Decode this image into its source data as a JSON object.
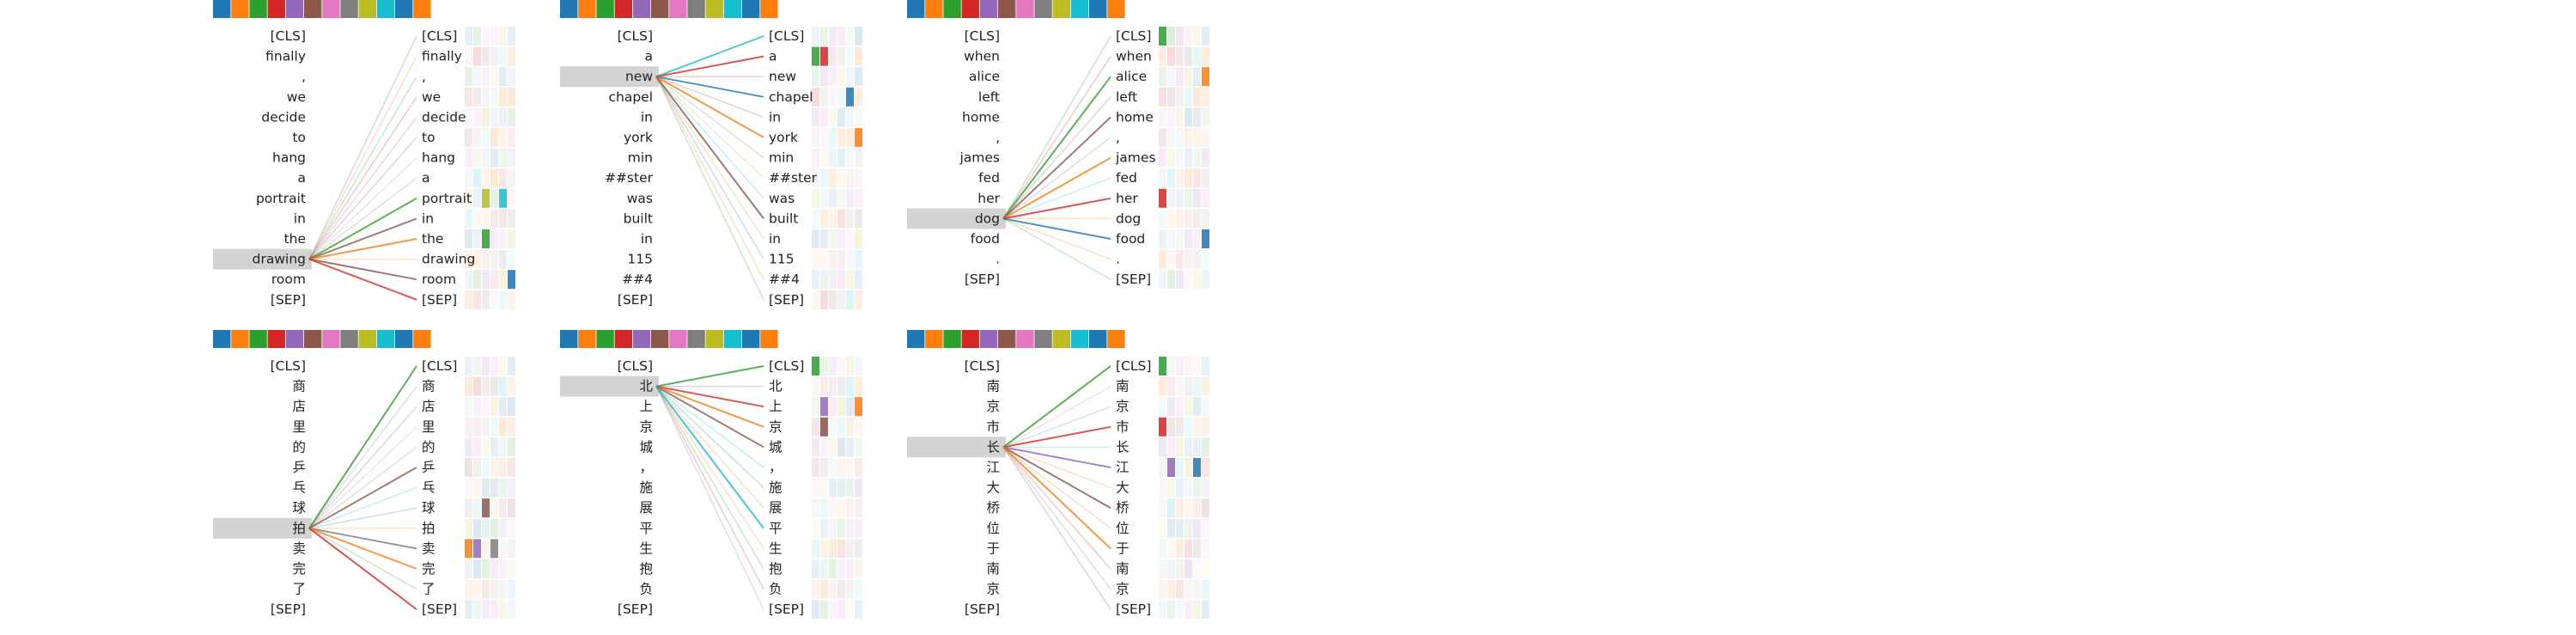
{
  "palette": [
    "#1f77b4",
    "#ff7f0e",
    "#2ca02c",
    "#d62728",
    "#9467bd",
    "#8c564b",
    "#e377c2",
    "#7f7f7f",
    "#bcbd22",
    "#17becf",
    "#1f77b4",
    "#ff7f0e"
  ],
  "highlight_color": "#d3d3d3",
  "panels": [
    {
      "left_tokens": [
        "[CLS]",
        "finally",
        ",",
        "we",
        "decide",
        "to",
        "hang",
        "a",
        "portrait",
        "in",
        "the",
        "drawing",
        "room",
        "[SEP]"
      ],
      "right_tokens": [
        "[CLS]",
        "finally",
        ",",
        "we",
        "decide",
        "to",
        "hang",
        "a",
        "portrait",
        "in",
        "the",
        "drawing",
        "room",
        "[SEP]"
      ],
      "selected_index": 11,
      "strong_links": [
        {
          "to": 8,
          "color": "#2ca02c"
        },
        {
          "to": 9,
          "color": "#8c564b"
        },
        {
          "to": 10,
          "color": "#ff7f0e"
        },
        {
          "to": 12,
          "color": "#8c564b"
        },
        {
          "to": 13,
          "color": "#d62728"
        }
      ],
      "token_marks": [
        {
          "row": 8,
          "head": 2,
          "color": "#bcbd22"
        },
        {
          "row": 10,
          "head": 2,
          "color": "#2ca02c"
        },
        {
          "row": 8,
          "head": 4,
          "color": "#17becf"
        },
        {
          "row": 12,
          "head": 5,
          "color": "#1f77b4"
        }
      ]
    },
    {
      "left_tokens": [
        "[CLS]",
        "a",
        "new",
        "chapel",
        "in",
        "york",
        "min",
        "##ster",
        "was",
        "built",
        "in",
        "115",
        "##4",
        "[SEP]"
      ],
      "right_tokens": [
        "[CLS]",
        "a",
        "new",
        "chapel",
        "in",
        "york",
        "min",
        "##ster",
        "was",
        "built",
        "in",
        "115",
        "##4",
        "[SEP]"
      ],
      "selected_index": 2,
      "strong_links": [
        {
          "to": 0,
          "color": "#17becf"
        },
        {
          "to": 1,
          "color": "#d62728"
        },
        {
          "to": 3,
          "color": "#1f77b4"
        },
        {
          "to": 5,
          "color": "#ff7f0e"
        },
        {
          "to": 9,
          "color": "#8c564b"
        }
      ],
      "token_marks": [
        {
          "row": 1,
          "head": 0,
          "color": "#2ca02c"
        },
        {
          "row": 1,
          "head": 1,
          "color": "#d62728"
        },
        {
          "row": 3,
          "head": 4,
          "color": "#1f77b4"
        },
        {
          "row": 5,
          "head": 5,
          "color": "#ff7f0e"
        }
      ]
    },
    {
      "left_tokens": [
        "[CLS]",
        "when",
        "alice",
        "left",
        "home",
        ",",
        "james",
        "fed",
        "her",
        "dog",
        "food",
        ".",
        "[SEP]"
      ],
      "right_tokens": [
        "[CLS]",
        "when",
        "alice",
        "left",
        "home",
        ",",
        "james",
        "fed",
        "her",
        "dog",
        "food",
        ".",
        "[SEP]"
      ],
      "selected_index": 9,
      "strong_links": [
        {
          "to": 2,
          "color": "#2ca02c"
        },
        {
          "to": 4,
          "color": "#8c564b"
        },
        {
          "to": 6,
          "color": "#ff7f0e"
        },
        {
          "to": 8,
          "color": "#d62728"
        },
        {
          "to": 10,
          "color": "#1f77b4"
        }
      ],
      "token_marks": [
        {
          "row": 0,
          "head": 0,
          "color": "#2ca02c"
        },
        {
          "row": 8,
          "head": 0,
          "color": "#d62728"
        },
        {
          "row": 10,
          "head": 5,
          "color": "#1f77b4"
        },
        {
          "row": 2,
          "head": 5,
          "color": "#ff7f0e"
        }
      ]
    },
    {
      "left_tokens": [
        "[CLS]",
        "商",
        "店",
        "里",
        "的",
        "乒",
        "乓",
        "球",
        "拍",
        "卖",
        "完",
        "了",
        "[SEP]"
      ],
      "right_tokens": [
        "[CLS]",
        "商",
        "店",
        "里",
        "的",
        "乒",
        "乓",
        "球",
        "拍",
        "卖",
        "完",
        "了",
        "[SEP]"
      ],
      "selected_index": 8,
      "strong_links": [
        {
          "to": 0,
          "color": "#2ca02c"
        },
        {
          "to": 5,
          "color": "#8c564b"
        },
        {
          "to": 9,
          "color": "#7f7f7f"
        },
        {
          "to": 10,
          "color": "#ff7f0e"
        },
        {
          "to": 12,
          "color": "#d62728"
        }
      ],
      "token_marks": [
        {
          "row": 9,
          "head": 1,
          "color": "#9467bd"
        },
        {
          "row": 9,
          "head": 3,
          "color": "#7f7f7f"
        },
        {
          "row": 9,
          "head": 0,
          "color": "#ff7f0e"
        },
        {
          "row": 7,
          "head": 2,
          "color": "#8c564b"
        }
      ]
    },
    {
      "left_tokens": [
        "[CLS]",
        "北",
        "上",
        "京",
        "城",
        "，",
        "施",
        "展",
        "平",
        "生",
        "抱",
        "负",
        "[SEP]"
      ],
      "right_tokens": [
        "[CLS]",
        "北",
        "上",
        "京",
        "城",
        "，",
        "施",
        "展",
        "平",
        "生",
        "抱",
        "负",
        "[SEP]"
      ],
      "selected_index": 1,
      "strong_links": [
        {
          "to": 0,
          "color": "#2ca02c"
        },
        {
          "to": 2,
          "color": "#d62728"
        },
        {
          "to": 3,
          "color": "#ff7f0e"
        },
        {
          "to": 4,
          "color": "#8c564b"
        },
        {
          "to": 8,
          "color": "#17becf"
        }
      ],
      "token_marks": [
        {
          "row": 0,
          "head": 0,
          "color": "#2ca02c"
        },
        {
          "row": 2,
          "head": 1,
          "color": "#9467bd"
        },
        {
          "row": 2,
          "head": 5,
          "color": "#ff7f0e"
        },
        {
          "row": 3,
          "head": 1,
          "color": "#8c564b"
        }
      ]
    },
    {
      "left_tokens": [
        "[CLS]",
        "南",
        "京",
        "市",
        "长",
        "江",
        "大",
        "桥",
        "位",
        "于",
        "南",
        "京",
        "[SEP]"
      ],
      "right_tokens": [
        "[CLS]",
        "南",
        "京",
        "市",
        "长",
        "江",
        "大",
        "桥",
        "位",
        "于",
        "南",
        "京",
        "[SEP]"
      ],
      "selected_index": 4,
      "strong_links": [
        {
          "to": 0,
          "color": "#2ca02c"
        },
        {
          "to": 3,
          "color": "#d62728"
        },
        {
          "to": 5,
          "color": "#9467bd"
        },
        {
          "to": 7,
          "color": "#8c564b"
        },
        {
          "to": 9,
          "color": "#ff7f0e"
        }
      ],
      "token_marks": [
        {
          "row": 0,
          "head": 0,
          "color": "#2ca02c"
        },
        {
          "row": 3,
          "head": 0,
          "color": "#d62728"
        },
        {
          "row": 5,
          "head": 1,
          "color": "#9467bd"
        },
        {
          "row": 5,
          "head": 4,
          "color": "#1f77b4"
        }
      ]
    }
  ]
}
